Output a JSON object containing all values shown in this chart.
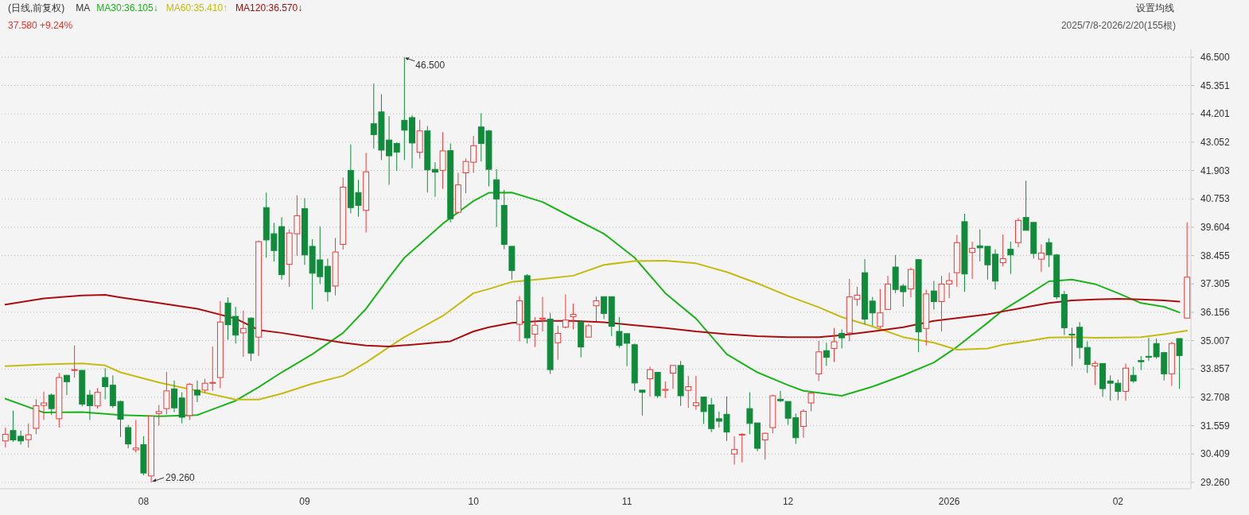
{
  "chart_data": {
    "type": "candlestick",
    "title": "(日线,前复权)",
    "categories": [
      null,
      null,
      null,
      null,
      null,
      null,
      null,
      null,
      null,
      null,
      null,
      null,
      null,
      null,
      null,
      null,
      null,
      null,
      "08",
      null,
      null,
      null,
      null,
      null,
      null,
      null,
      null,
      null,
      null,
      null,
      null,
      null,
      null,
      null,
      null,
      null,
      null,
      null,
      null,
      "09",
      null,
      null,
      null,
      null,
      null,
      null,
      null,
      null,
      null,
      null,
      null,
      null,
      null,
      null,
      null,
      null,
      null,
      null,
      null,
      null,
      null,
      "10",
      null,
      null,
      null,
      null,
      null,
      null,
      null,
      null,
      null,
      null,
      null,
      null,
      null,
      null,
      null,
      null,
      null,
      null,
      null,
      "11",
      null,
      null,
      null,
      null,
      null,
      null,
      null,
      null,
      null,
      null,
      null,
      null,
      null,
      null,
      null,
      null,
      null,
      null,
      null,
      null,
      "12",
      null,
      null,
      null,
      null,
      null,
      null,
      null,
      null,
      null,
      null,
      null,
      null,
      null,
      null,
      null,
      null,
      null,
      null,
      null,
      null,
      "2026",
      null,
      null,
      null,
      null,
      null,
      null,
      null,
      null,
      null,
      null,
      null,
      null,
      null,
      null,
      null,
      null,
      null,
      null,
      null,
      null,
      null,
      "02",
      null,
      null,
      null,
      null,
      null,
      null,
      null,
      null,
      null
    ],
    "ohlc": [
      [
        30.94,
        31.48,
        30.67,
        31.21
      ],
      [
        31.36,
        32.17,
        30.9,
        30.98
      ],
      [
        31.13,
        31.36,
        30.79,
        30.94
      ],
      [
        30.99,
        31.65,
        30.67,
        31.19
      ],
      [
        31.45,
        32.63,
        31.21,
        32.37
      ],
      [
        32.38,
        32.94,
        31.79,
        32.48
      ],
      [
        32.8,
        32.86,
        31.99,
        32.25
      ],
      [
        31.84,
        33.69,
        31.48,
        33.51
      ],
      [
        33.6,
        33.62,
        32.8,
        33.34
      ],
      [
        33.8,
        34.81,
        33.51,
        33.83
      ],
      [
        33.8,
        33.81,
        32.34,
        32.43
      ],
      [
        32.8,
        33.0,
        31.79,
        32.37
      ],
      [
        32.36,
        33.08,
        32.25,
        32.91
      ],
      [
        33.51,
        33.89,
        32.63,
        33.14
      ],
      [
        33.2,
        33.6,
        32.28,
        32.37
      ],
      [
        32.54,
        32.57,
        31.1,
        31.82
      ],
      [
        31.48,
        31.59,
        30.64,
        30.82
      ],
      [
        30.58,
        31.79,
        30.47,
        30.65
      ],
      [
        30.79,
        31.13,
        29.55,
        29.64
      ],
      [
        29.52,
        31.94,
        29.26,
        31.94
      ],
      [
        32.05,
        32.4,
        31.56,
        32.13
      ],
      [
        32.25,
        33.74,
        32.02,
        32.97
      ],
      [
        33.05,
        33.39,
        32.11,
        32.28
      ],
      [
        32.68,
        32.91,
        31.65,
        31.9
      ],
      [
        31.97,
        33.29,
        31.79,
        33.23
      ],
      [
        33.0,
        33.39,
        32.51,
        32.8
      ],
      [
        33.0,
        33.46,
        32.89,
        33.28
      ],
      [
        33.28,
        34.77,
        32.97,
        33.31
      ],
      [
        33.51,
        36.61,
        33.08,
        35.76
      ],
      [
        36.53,
        36.76,
        35.04,
        35.65
      ],
      [
        35.99,
        36.38,
        34.89,
        35.23
      ],
      [
        35.32,
        36.22,
        34.35,
        35.5
      ],
      [
        35.92,
        35.95,
        34.18,
        34.5
      ],
      [
        35.15,
        39.06,
        34.38,
        39.02
      ],
      [
        40.4,
        41.01,
        38.37,
        39.09
      ],
      [
        39.34,
        39.78,
        38.22,
        38.66
      ],
      [
        39.63,
        40.01,
        37.48,
        37.68
      ],
      [
        38.1,
        39.52,
        37.19,
        39.37
      ],
      [
        39.34,
        40.9,
        38.45,
        40.07
      ],
      [
        40.36,
        40.78,
        38.08,
        38.48
      ],
      [
        38.83,
        39.12,
        36.27,
        37.74
      ],
      [
        38.28,
        39.63,
        37.3,
        37.6
      ],
      [
        38.02,
        38.33,
        36.59,
        36.99
      ],
      [
        37.22,
        39.17,
        36.84,
        38.6
      ],
      [
        38.91,
        41.62,
        38.7,
        41.23
      ],
      [
        41.91,
        42.96,
        40.17,
        40.4
      ],
      [
        41.01,
        41.53,
        40.03,
        40.49
      ],
      [
        40.29,
        42.62,
        39.39,
        41.85
      ],
      [
        43.8,
        45.43,
        42.79,
        43.36
      ],
      [
        44.28,
        45.0,
        42.33,
        42.73
      ],
      [
        43.14,
        44.11,
        41.32,
        42.5
      ],
      [
        43.0,
        43.04,
        41.89,
        42.65
      ],
      [
        43.94,
        46.5,
        42.33,
        43.54
      ],
      [
        44.05,
        44.15,
        41.99,
        43.02
      ],
      [
        42.64,
        43.96,
        42.39,
        43.51
      ],
      [
        43.51,
        43.71,
        41.01,
        41.93
      ],
      [
        41.95,
        42.24,
        40.84,
        41.84
      ],
      [
        41.91,
        43.46,
        41.16,
        42.7
      ],
      [
        42.71,
        43.0,
        39.8,
        39.95
      ],
      [
        40.21,
        41.81,
        40.15,
        41.32
      ],
      [
        41.81,
        42.39,
        40.98,
        42.27
      ],
      [
        42.24,
        43.31,
        41.81,
        42.91
      ],
      [
        43.67,
        44.23,
        42.27,
        43.0
      ],
      [
        43.51,
        43.55,
        41.26,
        41.95
      ],
      [
        41.53,
        41.96,
        39.61,
        40.75
      ],
      [
        40.49,
        41.12,
        38.71,
        38.91
      ],
      [
        38.83,
        38.83,
        37.48,
        37.85
      ],
      [
        35.67,
        36.82,
        34.98,
        36.62
      ],
      [
        37.64,
        37.7,
        34.89,
        35.12
      ],
      [
        35.27,
        35.96,
        34.75,
        35.63
      ],
      [
        35.88,
        36.78,
        35.38,
        35.92
      ],
      [
        35.88,
        36.13,
        33.66,
        33.83
      ],
      [
        34.92,
        35.61,
        34.23,
        35.3
      ],
      [
        35.55,
        36.88,
        35.5,
        35.84
      ],
      [
        35.98,
        36.51,
        35.46,
        36.07
      ],
      [
        35.76,
        35.84,
        34.33,
        34.75
      ],
      [
        35.15,
        35.69,
        35.13,
        35.61
      ],
      [
        36.42,
        36.79,
        35.78,
        36.62
      ],
      [
        36.79,
        36.79,
        35.88,
        36.11
      ],
      [
        36.79,
        36.79,
        35.19,
        35.59
      ],
      [
        35.38,
        35.96,
        34.72,
        34.81
      ],
      [
        35.29,
        35.29,
        33.97,
        34.9
      ],
      [
        34.84,
        34.89,
        32.97,
        33.29
      ],
      [
        33.0,
        33.0,
        31.97,
        32.91
      ],
      [
        33.46,
        33.95,
        32.74,
        33.83
      ],
      [
        33.72,
        33.72,
        32.68,
        32.77
      ],
      [
        32.99,
        33.35,
        32.68,
        33.03
      ],
      [
        33.69,
        34.0,
        33.05,
        34.0
      ],
      [
        34.0,
        34.18,
        32.36,
        32.77
      ],
      [
        32.99,
        33.58,
        32.28,
        33.14
      ],
      [
        32.37,
        33.58,
        32.2,
        32.49
      ],
      [
        32.72,
        32.72,
        31.63,
        32.13
      ],
      [
        32.4,
        32.68,
        31.3,
        31.44
      ],
      [
        31.84,
        32.13,
        31.48,
        31.74
      ],
      [
        32.02,
        32.74,
        30.94,
        31.3
      ],
      [
        30.41,
        31.13,
        29.98,
        30.59
      ],
      [
        31.19,
        31.25,
        30.07,
        31.21
      ],
      [
        32.25,
        32.91,
        31.21,
        31.65
      ],
      [
        31.67,
        31.67,
        30.52,
        30.64
      ],
      [
        30.98,
        31.28,
        30.18,
        31.25
      ],
      [
        31.48,
        32.82,
        31.25,
        32.77
      ],
      [
        32.63,
        32.97,
        32.51,
        32.57
      ],
      [
        32.54,
        32.54,
        31.59,
        31.86
      ],
      [
        31.88,
        32.05,
        30.82,
        31.07
      ],
      [
        31.53,
        32.22,
        31.07,
        32.14
      ],
      [
        32.48,
        32.89,
        32.14,
        32.88
      ],
      [
        33.66,
        35.0,
        33.37,
        34.55
      ],
      [
        34.6,
        34.92,
        33.98,
        34.33
      ],
      [
        34.69,
        35.52,
        34.14,
        34.96
      ],
      [
        35.3,
        35.46,
        34.69,
        35.12
      ],
      [
        35.32,
        37.51,
        34.98,
        36.78
      ],
      [
        36.68,
        37.19,
        36.42,
        36.85
      ],
      [
        37.76,
        38.31,
        35.67,
        35.88
      ],
      [
        36.61,
        36.78,
        35.61,
        36.13
      ],
      [
        35.58,
        37.1,
        35.5,
        36.13
      ],
      [
        36.27,
        37.64,
        36.27,
        37.3
      ],
      [
        37.99,
        38.48,
        36.93,
        37.08
      ],
      [
        37.22,
        37.3,
        36.38,
        36.99
      ],
      [
        37.1,
        37.97,
        36.76,
        37.89
      ],
      [
        38.29,
        38.31,
        34.54,
        35.36
      ],
      [
        35.5,
        37.07,
        34.81,
        36.9
      ],
      [
        37.02,
        37.43,
        36.27,
        36.59
      ],
      [
        36.59,
        37.64,
        35.38,
        37.3
      ],
      [
        37.3,
        37.76,
        36.73,
        37.44
      ],
      [
        37.76,
        39.29,
        37.19,
        38.98
      ],
      [
        39.83,
        40.15,
        36.99,
        37.71
      ],
      [
        38.58,
        39.02,
        37.51,
        38.75
      ],
      [
        38.85,
        39.52,
        38.22,
        38.77
      ],
      [
        38.83,
        38.83,
        37.48,
        38.08
      ],
      [
        38.51,
        38.71,
        37.08,
        37.42
      ],
      [
        38.17,
        39.31,
        38.02,
        38.33
      ],
      [
        38.71,
        39.02,
        37.71,
        38.48
      ],
      [
        38.98,
        39.98,
        38.79,
        39.88
      ],
      [
        40.0,
        41.49,
        39.48,
        39.48
      ],
      [
        39.8,
        39.8,
        38.33,
        38.54
      ],
      [
        38.31,
        38.91,
        37.79,
        38.56
      ],
      [
        38.98,
        39.15,
        37.99,
        38.48
      ],
      [
        38.48,
        38.52,
        36.68,
        36.78
      ],
      [
        36.88,
        37.02,
        35.23,
        35.53
      ],
      [
        35.27,
        35.53,
        33.97,
        35.23
      ],
      [
        35.55,
        35.76,
        34.27,
        34.73
      ],
      [
        34.73,
        34.98,
        33.69,
        34.04
      ],
      [
        33.98,
        34.18,
        33.2,
        34.08
      ],
      [
        34.08,
        34.08,
        32.74,
        33.06
      ],
      [
        33.37,
        33.6,
        32.57,
        33.28
      ],
      [
        33.28,
        33.43,
        32.59,
        32.95
      ],
      [
        32.95,
        34.08,
        32.57,
        33.89
      ],
      [
        33.6,
        33.95,
        33.29,
        33.37
      ],
      [
        34.2,
        34.38,
        33.81,
        34.15
      ],
      [
        34.37,
        35.12,
        34.18,
        34.33
      ],
      [
        34.89,
        35.09,
        34.27,
        34.35
      ],
      [
        34.52,
        34.55,
        33.39,
        33.66
      ],
      [
        33.66,
        34.96,
        33.18,
        34.89
      ],
      [
        35.09,
        35.09,
        33.05,
        34.4
      ],
      [
        35.92,
        39.8,
        35.92,
        37.58
      ]
    ],
    "colors": [
      "#eb3b3b",
      "#118b3b",
      "#118b3b",
      "#eb3b3b",
      "#eb3b3b",
      "#eb3b3b",
      "#118b3b",
      "#eb3b3b",
      "#118b3b",
      "#eb3b3b",
      "#118b3b",
      "#118b3b",
      "#eb3b3b",
      "#118b3b",
      "#118b3b",
      "#118b3b",
      "#118b3b",
      "#eb3b3b",
      "#118b3b",
      "#eb3b3b",
      "#eb3b3b",
      "#eb3b3b",
      "#118b3b",
      "#118b3b",
      "#eb3b3b",
      "#118b3b",
      "#eb3b3b",
      "#eb3b3b",
      "#eb3b3b",
      "#118b3b",
      "#118b3b",
      "#eb3b3b",
      "#118b3b",
      "#eb3b3b",
      "#118b3b",
      "#118b3b",
      "#118b3b",
      "#eb3b3b",
      "#eb3b3b",
      "#118b3b",
      "#118b3b",
      "#118b3b",
      "#118b3b",
      "#eb3b3b",
      "#eb3b3b",
      "#118b3b",
      "#118b3b",
      "#eb3b3b",
      "#118b3b",
      "#118b3b",
      "#118b3b",
      "#118b3b",
      "#118b3b",
      "#118b3b",
      "#eb3b3b",
      "#118b3b",
      "#118b3b",
      "#eb3b3b",
      "#118b3b",
      "#eb3b3b",
      "#eb3b3b",
      "#eb3b3b",
      "#118b3b",
      "#118b3b",
      "#118b3b",
      "#118b3b",
      "#118b3b",
      "#eb3b3b",
      "#118b3b",
      "#eb3b3b",
      "#eb3b3b",
      "#118b3b",
      "#eb3b3b",
      "#eb3b3b",
      "#eb3b3b",
      "#118b3b",
      "#eb3b3b",
      "#eb3b3b",
      "#118b3b",
      "#118b3b",
      "#118b3b",
      "#118b3b",
      "#118b3b",
      "#118b3b",
      "#eb3b3b",
      "#118b3b",
      "#eb3b3b",
      "#eb3b3b",
      "#118b3b",
      "#eb3b3b",
      "#eb3b3b",
      "#118b3b",
      "#118b3b",
      "#118b3b",
      "#118b3b",
      "#eb3b3b",
      "#eb3b3b",
      "#118b3b",
      "#118b3b",
      "#eb3b3b",
      "#eb3b3b",
      "#118b3b",
      "#118b3b",
      "#118b3b",
      "#eb3b3b",
      "#eb3b3b",
      "#eb3b3b",
      "#118b3b",
      "#eb3b3b",
      "#118b3b",
      "#eb3b3b",
      "#eb3b3b",
      "#118b3b",
      "#118b3b",
      "#eb3b3b",
      "#eb3b3b",
      "#118b3b",
      "#118b3b",
      "#eb3b3b",
      "#118b3b",
      "#eb3b3b",
      "#118b3b",
      "#eb3b3b",
      "#eb3b3b",
      "#eb3b3b",
      "#118b3b",
      "#eb3b3b",
      "#118b3b",
      "#118b3b",
      "#118b3b",
      "#eb3b3b",
      "#118b3b",
      "#eb3b3b",
      "#118b3b",
      "#118b3b",
      "#eb3b3b",
      "#118b3b",
      "#118b3b",
      "#118b3b",
      "#118b3b",
      "#118b3b",
      "#118b3b",
      "#eb3b3b",
      "#118b3b",
      "#118b3b",
      "#118b3b",
      "#eb3b3b",
      "#118b3b",
      "#118b3b",
      "#118b3b",
      "#118b3b",
      "#118b3b",
      "#eb3b3b",
      "#118b3b",
      "#eb3b3b"
    ],
    "series": [
      {
        "type": "line",
        "name": "MA30:36.105↓",
        "color": "#1db31d",
        "values": [
          32.65,
          null,
          null,
          null,
          null,
          32.09,
          null,
          null,
          null,
          null,
          32.11,
          null,
          null,
          null,
          null,
          31.99,
          null,
          null,
          null,
          null,
          31.94,
          null,
          null,
          null,
          null,
          31.99,
          null,
          null,
          null,
          null,
          32.57,
          null,
          null,
          33.12,
          null,
          null,
          33.72,
          null,
          null,
          null,
          34.46,
          null,
          null,
          null,
          35.32,
          null,
          null,
          36.3,
          null,
          null,
          37.57,
          null,
          38.37,
          null,
          null,
          null,
          null,
          39.75,
          null,
          null,
          null,
          40.67,
          null,
          41.0,
          null,
          null,
          41.01,
          null,
          null,
          null,
          40.63,
          null,
          null,
          null,
          39.98,
          null,
          null,
          null,
          39.34,
          null,
          null,
          null,
          38.37,
          null,
          null,
          null,
          36.93,
          null,
          null,
          null,
          35.9,
          null,
          null,
          null,
          34.46,
          null,
          null,
          null,
          33.72,
          null,
          null,
          null,
          33.2,
          null,
          32.97,
          null,
          32.89,
          null,
          null,
          32.77,
          null,
          null,
          null,
          33.14,
          null,
          null,
          null,
          33.6,
          null,
          null,
          null,
          34.12,
          null,
          null,
          34.75,
          null,
          null,
          null,
          35.73,
          null,
          36.24,
          null,
          null,
          36.82,
          null,
          null,
          37.41,
          null,
          null,
          37.48,
          null,
          null,
          37.3,
          null,
          null,
          36.93,
          null,
          null,
          36.53,
          null,
          null,
          36.38,
          null,
          36.15,
          null
        ]
      },
      {
        "type": "line",
        "name": "MA60:35.410↑",
        "color": "#c4bb12",
        "values": [
          33.97,
          null,
          null,
          null,
          null,
          34.04,
          null,
          null,
          null,
          null,
          34.08,
          null,
          null,
          34.0,
          null,
          33.72,
          null,
          null,
          null,
          null,
          33.31,
          null,
          null,
          null,
          null,
          32.97,
          null,
          null,
          null,
          null,
          32.62,
          null,
          null,
          32.62,
          null,
          null,
          32.86,
          null,
          null,
          null,
          33.26,
          null,
          null,
          null,
          33.58,
          null,
          null,
          34.12,
          null,
          null,
          34.75,
          null,
          35.15,
          null,
          null,
          null,
          null,
          36.01,
          null,
          null,
          null,
          36.93,
          null,
          37.1,
          null,
          null,
          37.39,
          null,
          null,
          null,
          37.51,
          null,
          null,
          null,
          37.64,
          null,
          null,
          null,
          38.08,
          null,
          null,
          null,
          38.23,
          null,
          null,
          null,
          38.25,
          null,
          null,
          null,
          38.14,
          null,
          null,
          null,
          37.79,
          null,
          null,
          null,
          37.33,
          null,
          null,
          null,
          36.82,
          null,
          null,
          null,
          36.36,
          null,
          null,
          35.96,
          null,
          null,
          null,
          35.58,
          null,
          null,
          null,
          35.15,
          null,
          null,
          null,
          34.92,
          null,
          null,
          34.64,
          null,
          null,
          null,
          34.69,
          null,
          34.84,
          null,
          null,
          34.98,
          null,
          null,
          35.13,
          null,
          null,
          35.15,
          null,
          null,
          35.12,
          null,
          null,
          35.13,
          null,
          null,
          35.15,
          null,
          null,
          35.27,
          null,
          null,
          35.41
        ]
      },
      {
        "type": "line",
        "name": "MA120:36.570↓",
        "color": "#a81010",
        "values": [
          36.47,
          null,
          null,
          null,
          null,
          36.72,
          null,
          null,
          null,
          null,
          36.84,
          null,
          null,
          36.86,
          null,
          36.76,
          null,
          null,
          null,
          null,
          36.53,
          null,
          null,
          null,
          null,
          36.3,
          null,
          null,
          null,
          null,
          35.9,
          null,
          null,
          35.44,
          null,
          null,
          35.32,
          null,
          null,
          null,
          35.12,
          null,
          null,
          null,
          34.92,
          null,
          null,
          34.81,
          null,
          null,
          34.77,
          null,
          null,
          34.84,
          null,
          null,
          null,
          null,
          34.98,
          null,
          null,
          35.38,
          null,
          35.55,
          null,
          null,
          35.73,
          null,
          null,
          null,
          35.81,
          null,
          null,
          null,
          35.81,
          null,
          null,
          null,
          35.75,
          null,
          null,
          null,
          35.63,
          null,
          null,
          null,
          35.52,
          null,
          null,
          null,
          35.38,
          null,
          null,
          null,
          35.27,
          null,
          null,
          null,
          35.19,
          null,
          null,
          null,
          35.15,
          null,
          null,
          null,
          35.15,
          null,
          null,
          35.23,
          null,
          null,
          null,
          35.38,
          null,
          null,
          null,
          35.55,
          null,
          null,
          null,
          35.81,
          null,
          null,
          35.92,
          null,
          null,
          null,
          36.07,
          null,
          36.19,
          null,
          null,
          36.36,
          null,
          null,
          36.53,
          null,
          null,
          36.64,
          null,
          null,
          36.68,
          null,
          null,
          36.7,
          null,
          null,
          36.68,
          null,
          null,
          36.64,
          null,
          36.59,
          null
        ]
      }
    ],
    "ylim": [
      29.0,
      46.82
    ],
    "yticks": [
      {
        "value": 46.5,
        "label": "46.500"
      },
      {
        "value": 45.351,
        "label": "45.351"
      },
      {
        "value": 44.201,
        "label": "44.201"
      },
      {
        "value": 43.052,
        "label": "43.052"
      },
      {
        "value": 41.903,
        "label": "41.903"
      },
      {
        "value": 40.753,
        "label": "40.753"
      },
      {
        "value": 39.604,
        "label": "39.604"
      },
      {
        "value": 38.455,
        "label": "38.455"
      },
      {
        "value": 37.305,
        "label": "37.305"
      },
      {
        "value": 36.156,
        "label": "36.156"
      },
      {
        "value": 35.007,
        "label": "35.007"
      },
      {
        "value": 33.857,
        "label": "33.857"
      },
      {
        "value": 32.708,
        "label": "32.708"
      },
      {
        "value": 31.559,
        "label": "31.559"
      },
      {
        "value": 30.409,
        "label": "30.409"
      },
      {
        "value": 29.26,
        "label": "29.260"
      }
    ],
    "grid": "y",
    "annotations": [
      "MA",
      "37.580 +9.24%",
      "2025/7/8-2026/2/20(155根)",
      "设置均线",
      "46.500",
      "29.260"
    ]
  }
}
